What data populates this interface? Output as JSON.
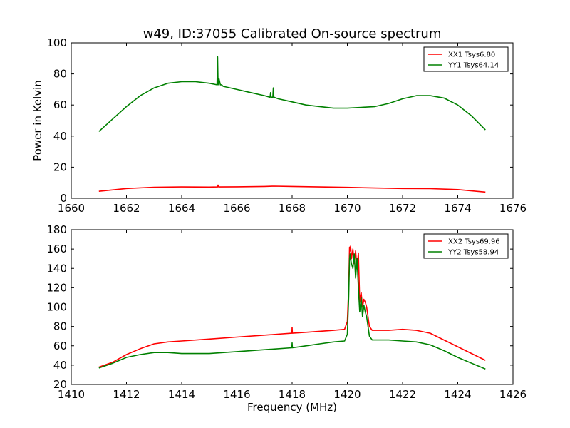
{
  "chart_data": [
    {
      "type": "line",
      "title": "w49, ID:37055 Calibrated On-source spectrum",
      "xlabel": "",
      "ylabel": "Power in Kelvin",
      "xlim": [
        1660,
        1676
      ],
      "ylim": [
        0,
        100
      ],
      "xticks": [
        1660,
        1662,
        1664,
        1666,
        1668,
        1670,
        1672,
        1674,
        1676
      ],
      "yticks": [
        0,
        20,
        40,
        60,
        80,
        100
      ],
      "grid": false,
      "legend_position": "top-right",
      "series": [
        {
          "name": "XX1 Tsys6.80",
          "color": "#ff0000",
          "x": [
            1661.0,
            1662.0,
            1663.0,
            1664.0,
            1665.0,
            1665.3,
            1665.32,
            1665.34,
            1666.0,
            1667.0,
            1667.35,
            1668.0,
            1669.0,
            1670.0,
            1671.0,
            1672.0,
            1673.0,
            1674.0,
            1675.0
          ],
          "values": [
            4.5,
            6.3,
            7.1,
            7.3,
            7.2,
            7.3,
            8.5,
            7.3,
            7.4,
            7.6,
            7.8,
            7.6,
            7.3,
            7.0,
            6.6,
            6.3,
            6.2,
            5.6,
            4.0
          ]
        },
        {
          "name": "YY1 Tsys64.14",
          "color": "#008000",
          "x": [
            1661.0,
            1661.5,
            1662.0,
            1662.5,
            1663.0,
            1663.5,
            1664.0,
            1664.5,
            1665.0,
            1665.28,
            1665.3,
            1665.32,
            1665.35,
            1665.4,
            1665.45,
            1665.5,
            1666.0,
            1666.5,
            1667.0,
            1667.2,
            1667.22,
            1667.24,
            1667.3,
            1667.32,
            1667.34,
            1667.5,
            1668.0,
            1668.5,
            1669.0,
            1669.5,
            1670.0,
            1670.5,
            1671.0,
            1671.5,
            1672.0,
            1672.5,
            1673.0,
            1673.5,
            1674.0,
            1674.5,
            1675.0
          ],
          "values": [
            43,
            51,
            59,
            66,
            71,
            74,
            75,
            75,
            74,
            73,
            91,
            73,
            77,
            73,
            73,
            72,
            70,
            68,
            66,
            65,
            68,
            65,
            65,
            71,
            65,
            64,
            62,
            60,
            59,
            58,
            58,
            58.5,
            59,
            61,
            64,
            66,
            66,
            64.5,
            60,
            53,
            44
          ]
        }
      ]
    },
    {
      "type": "line",
      "title": "",
      "xlabel": "Frequency (MHz)",
      "ylabel": "",
      "xlim": [
        1410,
        1426
      ],
      "ylim": [
        20,
        180
      ],
      "xticks": [
        1410,
        1412,
        1414,
        1416,
        1418,
        1420,
        1422,
        1424,
        1426
      ],
      "yticks": [
        20,
        40,
        60,
        80,
        100,
        120,
        140,
        160,
        180
      ],
      "grid": false,
      "legend_position": "top-right",
      "series": [
        {
          "name": "XX2 Tsys69.96",
          "color": "#ff0000",
          "x": [
            1411.0,
            1411.5,
            1412.0,
            1412.5,
            1413.0,
            1413.5,
            1414.0,
            1415.0,
            1416.0,
            1417.0,
            1417.99,
            1418.0,
            1418.01,
            1418.5,
            1419.0,
            1419.5,
            1419.9,
            1420.0,
            1420.05,
            1420.08,
            1420.1,
            1420.12,
            1420.15,
            1420.2,
            1420.25,
            1420.3,
            1420.35,
            1420.4,
            1420.45,
            1420.5,
            1420.55,
            1420.6,
            1420.65,
            1420.7,
            1420.8,
            1420.9,
            1421.0,
            1421.5,
            1422.0,
            1422.5,
            1423.0,
            1423.5,
            1424.0,
            1424.5,
            1425.0
          ],
          "values": [
            38,
            43,
            51,
            57,
            62,
            64,
            65,
            67,
            69,
            71,
            73,
            79,
            73,
            74,
            75,
            76,
            77,
            85,
            120,
            162,
            158,
            163,
            150,
            160,
            145,
            158,
            140,
            156,
            105,
            115,
            100,
            108,
            105,
            100,
            80,
            76,
            76,
            76,
            77,
            76,
            73,
            66,
            59,
            52,
            45
          ]
        },
        {
          "name": "YY2 Tsys58.94",
          "color": "#008000",
          "x": [
            1411.0,
            1411.5,
            1412.0,
            1412.5,
            1413.0,
            1413.5,
            1414.0,
            1415.0,
            1416.0,
            1417.0,
            1417.99,
            1418.0,
            1418.01,
            1418.5,
            1419.0,
            1419.5,
            1419.9,
            1420.0,
            1420.05,
            1420.08,
            1420.1,
            1420.12,
            1420.15,
            1420.2,
            1420.25,
            1420.3,
            1420.35,
            1420.4,
            1420.45,
            1420.5,
            1420.55,
            1420.6,
            1420.65,
            1420.7,
            1420.8,
            1420.9,
            1421.0,
            1421.5,
            1422.0,
            1422.5,
            1423.0,
            1423.5,
            1424.0,
            1424.5,
            1425.0
          ],
          "values": [
            37,
            42,
            48,
            51,
            53,
            53,
            52,
            52,
            54,
            56,
            58,
            63,
            58,
            60,
            62,
            64,
            65,
            72,
            110,
            150,
            155,
            150,
            145,
            140,
            155,
            130,
            150,
            120,
            95,
            110,
            90,
            102,
            95,
            90,
            70,
            66,
            66,
            66,
            65,
            64,
            61,
            55,
            48,
            42,
            36
          ]
        }
      ]
    }
  ]
}
